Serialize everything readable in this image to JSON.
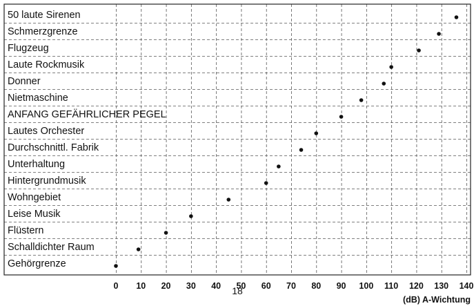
{
  "page_number": "18",
  "chart_data": {
    "type": "scatter",
    "title": "",
    "xlabel": "(dB) A-Wichtung",
    "ylabel": "",
    "xlim": [
      0,
      140
    ],
    "xticks": [
      0,
      10,
      20,
      30,
      40,
      50,
      60,
      70,
      80,
      90,
      100,
      110,
      120,
      130,
      140
    ],
    "grid": true,
    "grid_style": "dashed",
    "point_color": "#111111",
    "categories": [
      "50 laute Sirenen",
      "Schmerzgrenze",
      "Flugzeug",
      "Laute Rockmusik",
      "Donner",
      "Nietmaschine",
      "ANFANG GEFÄHRLICHER PEGEL",
      "Lautes Orchester",
      "Durchschnittl. Fabrik",
      "Unterhaltung",
      "Hintergrundmusik",
      "Wohngebiet",
      "Leise Musik",
      "Flüstern",
      "Schalldichter Raum",
      "Gehörgrenze"
    ],
    "values": [
      136,
      129,
      121,
      110,
      107,
      98,
      90,
      80,
      74,
      65,
      60,
      45,
      30,
      20,
      9,
      0
    ]
  }
}
